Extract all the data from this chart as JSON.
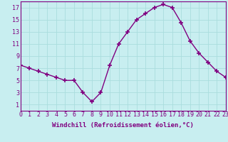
{
  "x": [
    0,
    1,
    2,
    3,
    4,
    5,
    6,
    7,
    8,
    9,
    10,
    11,
    12,
    13,
    14,
    15,
    16,
    17,
    18,
    19,
    20,
    21,
    22,
    23
  ],
  "y": [
    7.5,
    7.0,
    6.5,
    6.0,
    5.5,
    5.0,
    5.0,
    3.0,
    1.5,
    3.0,
    7.5,
    11.0,
    13.0,
    15.0,
    16.0,
    17.0,
    17.5,
    17.0,
    14.5,
    11.5,
    9.5,
    8.0,
    6.5,
    5.5
  ],
  "xlim": [
    0,
    23
  ],
  "ylim": [
    0,
    18
  ],
  "yticks": [
    1,
    3,
    5,
    7,
    9,
    11,
    13,
    15,
    17
  ],
  "xticks": [
    0,
    1,
    2,
    3,
    4,
    5,
    6,
    7,
    8,
    9,
    10,
    11,
    12,
    13,
    14,
    15,
    16,
    17,
    18,
    19,
    20,
    21,
    22,
    23
  ],
  "xlabel": "Windchill (Refroidissement éolien,°C)",
  "line_color": "#800080",
  "marker": "+",
  "bg_color": "#c8eef0",
  "grid_color": "#aadddd",
  "label_color": "#800080",
  "tick_color": "#800080",
  "xlabel_fontsize": 6.5,
  "tick_fontsize": 6
}
